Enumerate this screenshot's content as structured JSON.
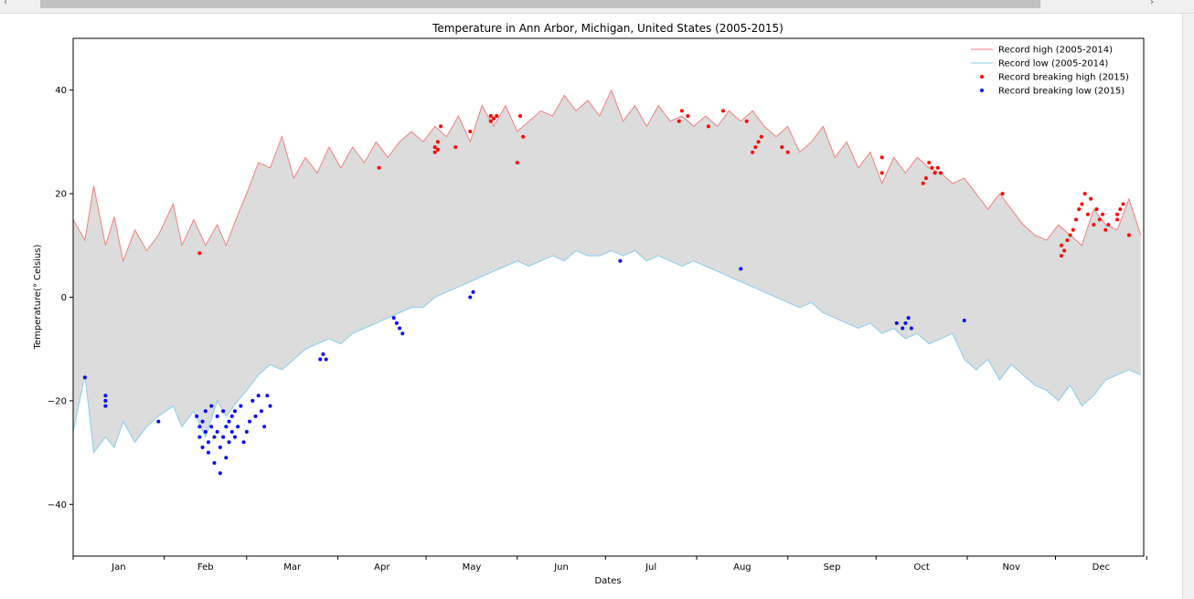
{
  "scrollbar": {
    "left_arrow": "‹",
    "right_arrow": "›"
  },
  "colors": {
    "high": "#f08080",
    "low": "#87ceeb",
    "fill": "#dcdcdc",
    "record_high": "#ff0000",
    "record_low": "#0000ff"
  },
  "chart_data": {
    "type": "line",
    "title": "Temperature in Ann Arbor, Michigan, United States (2005-2015)",
    "xlabel": "Dates",
    "ylabel": "Temperature(° Celsius)",
    "ylim": [
      -50,
      50
    ],
    "xlim": [
      "Jan 1",
      "Dec 31"
    ],
    "yticks": [
      -40,
      -20,
      0,
      20,
      40
    ],
    "xticks": [
      "Jan",
      "Feb",
      "Mar",
      "Apr",
      "May",
      "Jun",
      "Jul",
      "Aug",
      "Sep",
      "Oct",
      "Nov",
      "Dec"
    ],
    "legend_position": "top-right",
    "legend": [
      "Record high (2005-2014)",
      "Record low (2005-2014)",
      "Record breaking high (2015)",
      "Record breaking low (2015)"
    ],
    "fill_between": true,
    "series": [
      {
        "name": "Record high (2005-2014)",
        "style": "line",
        "x": [
          1,
          5,
          8,
          12,
          15,
          18,
          22,
          26,
          30,
          35,
          38,
          42,
          46,
          50,
          53,
          57,
          60,
          64,
          68,
          72,
          76,
          80,
          84,
          88,
          92,
          96,
          100,
          104,
          108,
          112,
          116,
          120,
          124,
          128,
          132,
          136,
          140,
          144,
          148,
          152,
          156,
          160,
          164,
          168,
          172,
          176,
          180,
          184,
          188,
          192,
          196,
          200,
          204,
          208,
          212,
          216,
          220,
          224,
          228,
          232,
          236,
          240,
          244,
          248,
          252,
          256,
          260,
          264,
          268,
          272,
          276,
          280,
          284,
          288,
          292,
          296,
          300,
          304,
          308,
          312,
          316,
          320,
          324,
          328,
          332,
          336,
          340,
          344,
          348,
          352,
          356,
          360,
          364
        ],
        "values": [
          15,
          11,
          21.5,
          10,
          15.5,
          7,
          13,
          9,
          12,
          18,
          10,
          15,
          10,
          14,
          10,
          16,
          20,
          26,
          25,
          31,
          23,
          27,
          24,
          29,
          25,
          29,
          26,
          30,
          27,
          30,
          32,
          30,
          33,
          31,
          35,
          30,
          37,
          33,
          37,
          32,
          34,
          36,
          35,
          39,
          36,
          38,
          35,
          40,
          34,
          37,
          33,
          37,
          34,
          35,
          33,
          35,
          33,
          36,
          34,
          36,
          33,
          31,
          33,
          28,
          30,
          33,
          27,
          30,
          25,
          28,
          22,
          27,
          24,
          27,
          25,
          24,
          22,
          23,
          20,
          17,
          20,
          17,
          14,
          12,
          11,
          14,
          12,
          10,
          17,
          14,
          13,
          19,
          12
        ]
      },
      {
        "name": "Record low (2005-2014)",
        "style": "line",
        "x": [
          1,
          5,
          8,
          12,
          15,
          18,
          22,
          26,
          30,
          35,
          38,
          42,
          46,
          50,
          53,
          57,
          60,
          64,
          68,
          72,
          76,
          80,
          84,
          88,
          92,
          96,
          100,
          104,
          108,
          112,
          116,
          120,
          124,
          128,
          132,
          136,
          140,
          144,
          148,
          152,
          156,
          160,
          164,
          168,
          172,
          176,
          180,
          184,
          188,
          192,
          196,
          200,
          204,
          208,
          212,
          216,
          220,
          224,
          228,
          232,
          236,
          240,
          244,
          248,
          252,
          256,
          260,
          264,
          268,
          272,
          276,
          280,
          284,
          288,
          292,
          296,
          300,
          304,
          308,
          312,
          316,
          320,
          324,
          328,
          332,
          336,
          340,
          344,
          348,
          352,
          356,
          360,
          364
        ],
        "values": [
          -26,
          -15,
          -30,
          -27,
          -29,
          -24,
          -28,
          -25,
          -23,
          -21,
          -25,
          -22,
          -27,
          -20,
          -23,
          -20,
          -18,
          -15,
          -13,
          -14,
          -12,
          -10,
          -9,
          -8,
          -9,
          -7,
          -6,
          -5,
          -4,
          -3,
          -2,
          -2,
          0,
          1,
          2,
          3,
          4,
          5,
          6,
          7,
          6,
          7,
          8,
          7,
          9,
          8,
          8,
          9,
          8,
          9,
          7,
          8,
          7,
          6,
          7,
          6,
          5,
          4,
          3,
          2,
          1,
          0,
          -1,
          -2,
          -1,
          -3,
          -4,
          -5,
          -6,
          -5,
          -7,
          -6,
          -8,
          -7,
          -9,
          -8,
          -7,
          -12,
          -14,
          -12,
          -16,
          -13,
          -15,
          -17,
          -18,
          -20,
          -17,
          -21,
          -19,
          -16,
          -15,
          -14,
          -15
        ]
      },
      {
        "name": "Record breaking high (2015)",
        "style": "scatter",
        "x": [
          44,
          105,
          124,
          124,
          125,
          125,
          126,
          131,
          136,
          143,
          143,
          144,
          145,
          152,
          153,
          154,
          207,
          208,
          210,
          217,
          222,
          230,
          232,
          233,
          234,
          235,
          242,
          244,
          276,
          276,
          290,
          291,
          292,
          293,
          294,
          295,
          296,
          317,
          337,
          337,
          338,
          339,
          340,
          341,
          342,
          343,
          344,
          345,
          346,
          347,
          348,
          349,
          350,
          351,
          352,
          353,
          356,
          356,
          357,
          358,
          360
        ],
        "values": [
          8.5,
          25,
          28,
          29,
          30,
          28.5,
          33,
          29,
          32,
          34,
          35,
          34.5,
          35,
          26,
          35,
          31,
          34,
          36,
          35,
          33,
          36,
          34,
          28,
          29,
          30,
          31,
          29,
          28,
          24,
          27,
          22,
          23,
          26,
          25,
          24,
          25,
          24,
          20,
          8,
          10,
          9,
          11,
          12,
          13,
          15,
          17,
          18,
          20,
          16,
          19,
          14,
          17,
          15,
          16,
          13,
          14,
          15,
          16,
          17,
          18,
          12
        ]
      },
      {
        "name": "Record breaking low (2015)",
        "style": "scatter",
        "x": [
          5,
          12,
          12,
          12,
          30,
          43,
          44,
          44,
          45,
          45,
          46,
          46,
          47,
          47,
          48,
          48,
          49,
          49,
          50,
          50,
          51,
          51,
          52,
          52,
          53,
          53,
          54,
          54,
          55,
          55,
          56,
          56,
          57,
          58,
          59,
          60,
          61,
          62,
          63,
          64,
          65,
          66,
          67,
          68,
          85,
          86,
          87,
          110,
          111,
          112,
          113,
          136,
          137,
          187,
          228,
          281,
          283,
          284,
          285,
          286,
          304
        ],
        "values": [
          -15.5,
          -19,
          -20,
          -21,
          -24,
          -23,
          -25,
          -27,
          -24,
          -29,
          -26,
          -22,
          -28,
          -30,
          -25,
          -21,
          -27,
          -32,
          -26,
          -23,
          -34,
          -29,
          -27,
          -22,
          -31,
          -25,
          -28,
          -24,
          -26,
          -23,
          -27,
          -22,
          -25,
          -21,
          -28,
          -26,
          -24,
          -20,
          -23,
          -19,
          -22,
          -25,
          -19,
          -21,
          -12,
          -11,
          -12,
          -4,
          -5,
          -6,
          -7,
          0,
          1,
          7,
          5.5,
          -5,
          -6,
          -5,
          -4,
          -6,
          -4.5
        ]
      }
    ]
  }
}
